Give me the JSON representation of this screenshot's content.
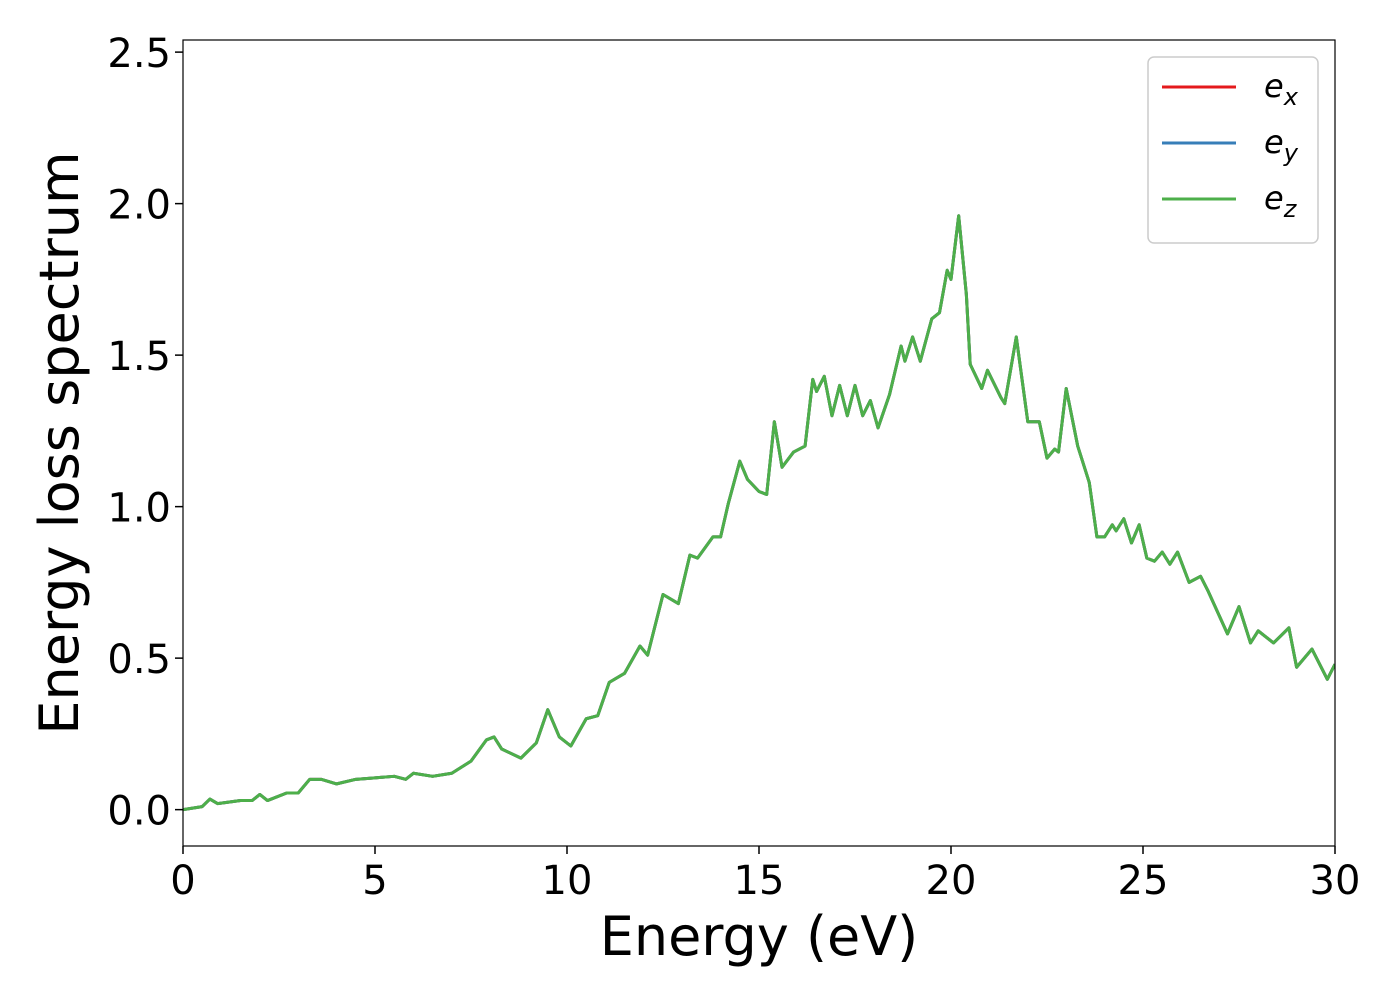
{
  "chart_data": {
    "type": "line",
    "xlabel": "Energy (eV)",
    "ylabel": "Energy loss spectrum",
    "x": [
      0,
      0.5,
      0.7,
      0.9,
      1.5,
      1.8,
      2.0,
      2.2,
      2.7,
      3.0,
      3.3,
      3.6,
      4.0,
      4.5,
      5.0,
      5.5,
      5.8,
      6.0,
      6.5,
      7.0,
      7.5,
      7.9,
      8.1,
      8.3,
      8.8,
      9.2,
      9.5,
      9.8,
      10.1,
      10.5,
      10.8,
      11.1,
      11.5,
      11.9,
      12.1,
      12.5,
      12.9,
      13.2,
      13.4,
      13.8,
      14.0,
      14.2,
      14.5,
      14.7,
      15.0,
      15.2,
      15.4,
      15.6,
      15.9,
      16.2,
      16.4,
      16.5,
      16.7,
      16.9,
      17.1,
      17.3,
      17.5,
      17.7,
      17.9,
      18.1,
      18.4,
      18.7,
      18.8,
      19.0,
      19.2,
      19.5,
      19.7,
      19.9,
      20.0,
      20.2,
      20.4,
      20.5,
      20.8,
      20.95,
      21.3,
      21.4,
      21.7,
      22.0,
      22.3,
      22.5,
      22.7,
      22.8,
      23.0,
      23.3,
      23.6,
      23.8,
      24.0,
      24.2,
      24.3,
      24.5,
      24.7,
      24.9,
      25.1,
      25.3,
      25.5,
      25.7,
      25.9,
      26.2,
      26.5,
      26.7,
      27.2,
      27.5,
      27.8,
      28.0,
      28.4,
      28.8,
      29.0,
      29.4,
      29.8,
      30.0
    ],
    "series": [
      {
        "name": "e_x",
        "color": "#e41a1c",
        "values": [
          0,
          0.01,
          0.035,
          0.02,
          0.03,
          0.03,
          0.05,
          0.03,
          0.055,
          0.055,
          0.1,
          0.1,
          0.085,
          0.1,
          0.105,
          0.11,
          0.1,
          0.12,
          0.11,
          0.12,
          0.16,
          0.23,
          0.24,
          0.2,
          0.17,
          0.22,
          0.33,
          0.24,
          0.21,
          0.3,
          0.31,
          0.42,
          0.45,
          0.54,
          0.51,
          0.71,
          0.68,
          0.84,
          0.83,
          0.9,
          0.9,
          1.01,
          1.15,
          1.09,
          1.05,
          1.04,
          1.28,
          1.13,
          1.18,
          1.2,
          1.42,
          1.38,
          1.43,
          1.3,
          1.4,
          1.3,
          1.4,
          1.3,
          1.35,
          1.26,
          1.37,
          1.53,
          1.48,
          1.56,
          1.48,
          1.62,
          1.64,
          1.78,
          1.75,
          1.96,
          1.7,
          1.47,
          1.39,
          1.45,
          1.36,
          1.34,
          1.56,
          1.28,
          1.28,
          1.16,
          1.19,
          1.18,
          1.39,
          1.2,
          1.08,
          0.9,
          0.9,
          0.94,
          0.92,
          0.96,
          0.88,
          0.94,
          0.83,
          0.82,
          0.85,
          0.81,
          0.85,
          0.75,
          0.77,
          0.72,
          0.58,
          0.67,
          0.55,
          0.59,
          0.55,
          0.6,
          0.47,
          0.53,
          0.43,
          0.48
        ]
      },
      {
        "name": "e_y",
        "color": "#377eb8",
        "values": [
          0,
          0.01,
          0.035,
          0.02,
          0.03,
          0.03,
          0.05,
          0.03,
          0.055,
          0.055,
          0.1,
          0.1,
          0.085,
          0.1,
          0.105,
          0.11,
          0.1,
          0.12,
          0.11,
          0.12,
          0.16,
          0.23,
          0.24,
          0.2,
          0.17,
          0.22,
          0.33,
          0.24,
          0.21,
          0.3,
          0.31,
          0.42,
          0.45,
          0.54,
          0.51,
          0.71,
          0.68,
          0.84,
          0.83,
          0.9,
          0.9,
          1.01,
          1.15,
          1.09,
          1.05,
          1.04,
          1.28,
          1.13,
          1.18,
          1.2,
          1.42,
          1.38,
          1.43,
          1.3,
          1.4,
          1.3,
          1.4,
          1.3,
          1.35,
          1.26,
          1.37,
          1.53,
          1.48,
          1.56,
          1.48,
          1.62,
          1.64,
          1.78,
          1.75,
          1.96,
          1.7,
          1.47,
          1.39,
          1.45,
          1.36,
          1.34,
          1.56,
          1.28,
          1.28,
          1.16,
          1.19,
          1.18,
          1.39,
          1.2,
          1.08,
          0.9,
          0.9,
          0.94,
          0.92,
          0.96,
          0.88,
          0.94,
          0.83,
          0.82,
          0.85,
          0.81,
          0.85,
          0.75,
          0.77,
          0.72,
          0.58,
          0.67,
          0.55,
          0.59,
          0.55,
          0.6,
          0.47,
          0.53,
          0.43,
          0.48
        ]
      },
      {
        "name": "e_z",
        "color": "#4daf4a",
        "values": [
          0,
          0.01,
          0.035,
          0.02,
          0.03,
          0.03,
          0.05,
          0.03,
          0.055,
          0.055,
          0.1,
          0.1,
          0.085,
          0.1,
          0.105,
          0.11,
          0.1,
          0.12,
          0.11,
          0.12,
          0.16,
          0.23,
          0.24,
          0.2,
          0.17,
          0.22,
          0.33,
          0.24,
          0.21,
          0.3,
          0.31,
          0.42,
          0.45,
          0.54,
          0.51,
          0.71,
          0.68,
          0.84,
          0.83,
          0.9,
          0.9,
          1.01,
          1.15,
          1.09,
          1.05,
          1.04,
          1.28,
          1.13,
          1.18,
          1.2,
          1.42,
          1.38,
          1.43,
          1.3,
          1.4,
          1.3,
          1.4,
          1.3,
          1.35,
          1.26,
          1.37,
          1.53,
          1.48,
          1.56,
          1.48,
          1.62,
          1.64,
          1.78,
          1.75,
          1.96,
          1.7,
          1.47,
          1.39,
          1.45,
          1.36,
          1.34,
          1.56,
          1.28,
          1.28,
          1.16,
          1.19,
          1.18,
          1.39,
          1.2,
          1.08,
          0.9,
          0.9,
          0.94,
          0.92,
          0.96,
          0.88,
          0.94,
          0.83,
          0.82,
          0.85,
          0.81,
          0.85,
          0.75,
          0.77,
          0.72,
          0.58,
          0.67,
          0.55,
          0.59,
          0.55,
          0.6,
          0.47,
          0.53,
          0.43,
          0.48
        ]
      }
    ],
    "xlim": [
      0,
      30
    ],
    "xticks": [
      0,
      5,
      10,
      15,
      20,
      25,
      30
    ],
    "ylim": [
      -0.12,
      2.54
    ],
    "yticks": [
      {
        "value": 0,
        "label": "0.0"
      },
      0.5,
      {
        "value": 1,
        "label": "1.0"
      },
      1.5,
      {
        "value": 2,
        "label": "2.0"
      },
      2.5
    ],
    "legend": "upper right",
    "grid": false
  }
}
